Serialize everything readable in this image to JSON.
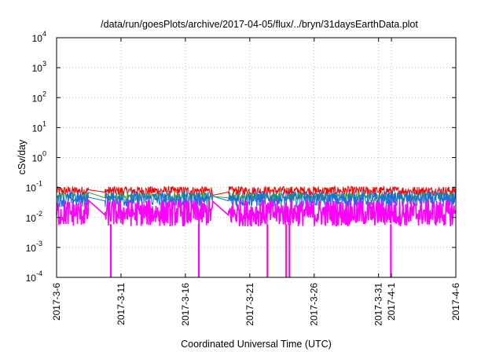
{
  "chart_data": {
    "type": "line",
    "title": "/data/run/goesPlots/archive/2017-04-05/flux/../bryn/31daysEarthData.plot",
    "xlabel": "Coordinated Universal Time (UTC)",
    "ylabel": "cSv/day",
    "yscale": "log",
    "ylim": [
      0.0001,
      10000
    ],
    "y_ticks": [
      {
        "value": 0.0001,
        "base": "10",
        "exp": "-4"
      },
      {
        "value": 0.001,
        "base": "10",
        "exp": "-3"
      },
      {
        "value": 0.01,
        "base": "10",
        "exp": "-2"
      },
      {
        "value": 0.1,
        "base": "10",
        "exp": "-1"
      },
      {
        "value": 1,
        "base": "10",
        "exp": "0"
      },
      {
        "value": 10,
        "base": "10",
        "exp": "1"
      },
      {
        "value": 100,
        "base": "10",
        "exp": "2"
      },
      {
        "value": 1000,
        "base": "10",
        "exp": "3"
      },
      {
        "value": 10000,
        "base": "10",
        "exp": "4"
      }
    ],
    "xlim": [
      "2017-03-06",
      "2017-04-06"
    ],
    "x_ticks": [
      {
        "date": "2017-03-06",
        "label": "2017-3-6"
      },
      {
        "date": "2017-03-11",
        "label": "2017-3-11"
      },
      {
        "date": "2017-03-16",
        "label": "2017-3-16"
      },
      {
        "date": "2017-03-21",
        "label": "2017-3-21"
      },
      {
        "date": "2017-03-26",
        "label": "2017-3-26"
      },
      {
        "date": "2017-03-31",
        "label": "2017-3-31"
      },
      {
        "date": "2017-04-01",
        "label": "2017-4-1"
      },
      {
        "date": "2017-04-06",
        "label": "2017-4-6"
      }
    ],
    "grid": true,
    "data_gaps": [
      {
        "from": "2017-03-08 12:00",
        "to": "2017-03-09 18:00"
      },
      {
        "from": "2017-03-18 03:00",
        "to": "2017-03-19 08:00"
      }
    ],
    "series": [
      {
        "color": "#ff0000",
        "low": 0.055,
        "high": 0.11
      },
      {
        "color": "#2ca02c",
        "low": 0.035,
        "high": 0.07
      },
      {
        "color": "#1a6fe0",
        "low": 0.022,
        "high": 0.075
      },
      {
        "color": "#ff00ff",
        "low": 0.005,
        "high": 0.04
      }
    ],
    "dips": [
      {
        "series_color": "#ff00ff",
        "date": "2017-03-10 05:00",
        "value": 0.0001
      },
      {
        "series_color": "#ff00ff",
        "date": "2017-03-17 01:00",
        "value": 0.0001
      },
      {
        "series_color": "#ff00ff",
        "date": "2017-03-22 09:00",
        "value": 0.0001
      },
      {
        "series_color": "#ff00ff",
        "date": "2017-03-23 20:00",
        "value": 0.0001
      },
      {
        "series_color": "#ff00ff",
        "date": "2017-03-24 02:00",
        "value": 0.0001
      },
      {
        "series_color": "#ff00ff",
        "date": "2017-03-31 23:00",
        "value": 0.0001
      }
    ]
  }
}
